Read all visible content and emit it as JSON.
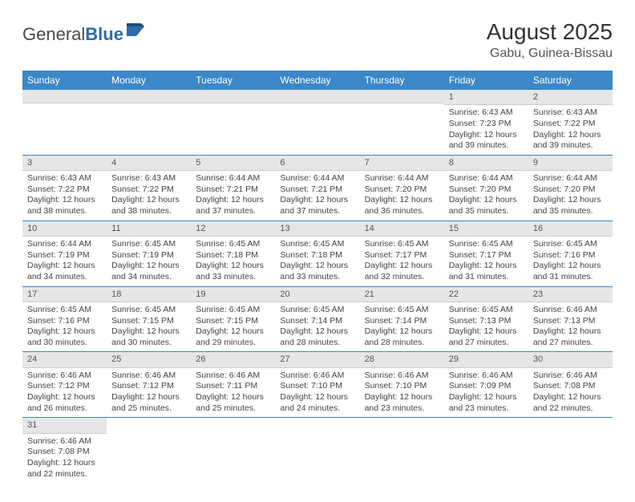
{
  "brand": {
    "name_part1": "General",
    "name_part2": "Blue",
    "logo_color": "#2e6ca8",
    "text_color": "#4a4a4a"
  },
  "title": "August 2025",
  "subtitle": "Gabu, Guinea-Bissau",
  "colors": {
    "header_bg": "#3b87c8",
    "header_fg": "#ffffff",
    "daynum_bg": "#e6e6e6",
    "week_divider": "#3b87c8",
    "body_text": "#444444"
  },
  "weekdays": [
    "Sunday",
    "Monday",
    "Tuesday",
    "Wednesday",
    "Thursday",
    "Friday",
    "Saturday"
  ],
  "weeks": [
    [
      null,
      null,
      null,
      null,
      null,
      {
        "d": "1",
        "sr": "Sunrise: 6:43 AM",
        "ss": "Sunset: 7:23 PM",
        "dl1": "Daylight: 12 hours",
        "dl2": "and 39 minutes."
      },
      {
        "d": "2",
        "sr": "Sunrise: 6:43 AM",
        "ss": "Sunset: 7:22 PM",
        "dl1": "Daylight: 12 hours",
        "dl2": "and 39 minutes."
      }
    ],
    [
      {
        "d": "3",
        "sr": "Sunrise: 6:43 AM",
        "ss": "Sunset: 7:22 PM",
        "dl1": "Daylight: 12 hours",
        "dl2": "and 38 minutes."
      },
      {
        "d": "4",
        "sr": "Sunrise: 6:43 AM",
        "ss": "Sunset: 7:22 PM",
        "dl1": "Daylight: 12 hours",
        "dl2": "and 38 minutes."
      },
      {
        "d": "5",
        "sr": "Sunrise: 6:44 AM",
        "ss": "Sunset: 7:21 PM",
        "dl1": "Daylight: 12 hours",
        "dl2": "and 37 minutes."
      },
      {
        "d": "6",
        "sr": "Sunrise: 6:44 AM",
        "ss": "Sunset: 7:21 PM",
        "dl1": "Daylight: 12 hours",
        "dl2": "and 37 minutes."
      },
      {
        "d": "7",
        "sr": "Sunrise: 6:44 AM",
        "ss": "Sunset: 7:20 PM",
        "dl1": "Daylight: 12 hours",
        "dl2": "and 36 minutes."
      },
      {
        "d": "8",
        "sr": "Sunrise: 6:44 AM",
        "ss": "Sunset: 7:20 PM",
        "dl1": "Daylight: 12 hours",
        "dl2": "and 35 minutes."
      },
      {
        "d": "9",
        "sr": "Sunrise: 6:44 AM",
        "ss": "Sunset: 7:20 PM",
        "dl1": "Daylight: 12 hours",
        "dl2": "and 35 minutes."
      }
    ],
    [
      {
        "d": "10",
        "sr": "Sunrise: 6:44 AM",
        "ss": "Sunset: 7:19 PM",
        "dl1": "Daylight: 12 hours",
        "dl2": "and 34 minutes."
      },
      {
        "d": "11",
        "sr": "Sunrise: 6:45 AM",
        "ss": "Sunset: 7:19 PM",
        "dl1": "Daylight: 12 hours",
        "dl2": "and 34 minutes."
      },
      {
        "d": "12",
        "sr": "Sunrise: 6:45 AM",
        "ss": "Sunset: 7:18 PM",
        "dl1": "Daylight: 12 hours",
        "dl2": "and 33 minutes."
      },
      {
        "d": "13",
        "sr": "Sunrise: 6:45 AM",
        "ss": "Sunset: 7:18 PM",
        "dl1": "Daylight: 12 hours",
        "dl2": "and 33 minutes."
      },
      {
        "d": "14",
        "sr": "Sunrise: 6:45 AM",
        "ss": "Sunset: 7:17 PM",
        "dl1": "Daylight: 12 hours",
        "dl2": "and 32 minutes."
      },
      {
        "d": "15",
        "sr": "Sunrise: 6:45 AM",
        "ss": "Sunset: 7:17 PM",
        "dl1": "Daylight: 12 hours",
        "dl2": "and 31 minutes."
      },
      {
        "d": "16",
        "sr": "Sunrise: 6:45 AM",
        "ss": "Sunset: 7:16 PM",
        "dl1": "Daylight: 12 hours",
        "dl2": "and 31 minutes."
      }
    ],
    [
      {
        "d": "17",
        "sr": "Sunrise: 6:45 AM",
        "ss": "Sunset: 7:16 PM",
        "dl1": "Daylight: 12 hours",
        "dl2": "and 30 minutes."
      },
      {
        "d": "18",
        "sr": "Sunrise: 6:45 AM",
        "ss": "Sunset: 7:15 PM",
        "dl1": "Daylight: 12 hours",
        "dl2": "and 30 minutes."
      },
      {
        "d": "19",
        "sr": "Sunrise: 6:45 AM",
        "ss": "Sunset: 7:15 PM",
        "dl1": "Daylight: 12 hours",
        "dl2": "and 29 minutes."
      },
      {
        "d": "20",
        "sr": "Sunrise: 6:45 AM",
        "ss": "Sunset: 7:14 PM",
        "dl1": "Daylight: 12 hours",
        "dl2": "and 28 minutes."
      },
      {
        "d": "21",
        "sr": "Sunrise: 6:45 AM",
        "ss": "Sunset: 7:14 PM",
        "dl1": "Daylight: 12 hours",
        "dl2": "and 28 minutes."
      },
      {
        "d": "22",
        "sr": "Sunrise: 6:45 AM",
        "ss": "Sunset: 7:13 PM",
        "dl1": "Daylight: 12 hours",
        "dl2": "and 27 minutes."
      },
      {
        "d": "23",
        "sr": "Sunrise: 6:46 AM",
        "ss": "Sunset: 7:13 PM",
        "dl1": "Daylight: 12 hours",
        "dl2": "and 27 minutes."
      }
    ],
    [
      {
        "d": "24",
        "sr": "Sunrise: 6:46 AM",
        "ss": "Sunset: 7:12 PM",
        "dl1": "Daylight: 12 hours",
        "dl2": "and 26 minutes."
      },
      {
        "d": "25",
        "sr": "Sunrise: 6:46 AM",
        "ss": "Sunset: 7:12 PM",
        "dl1": "Daylight: 12 hours",
        "dl2": "and 25 minutes."
      },
      {
        "d": "26",
        "sr": "Sunrise: 6:46 AM",
        "ss": "Sunset: 7:11 PM",
        "dl1": "Daylight: 12 hours",
        "dl2": "and 25 minutes."
      },
      {
        "d": "27",
        "sr": "Sunrise: 6:46 AM",
        "ss": "Sunset: 7:10 PM",
        "dl1": "Daylight: 12 hours",
        "dl2": "and 24 minutes."
      },
      {
        "d": "28",
        "sr": "Sunrise: 6:46 AM",
        "ss": "Sunset: 7:10 PM",
        "dl1": "Daylight: 12 hours",
        "dl2": "and 23 minutes."
      },
      {
        "d": "29",
        "sr": "Sunrise: 6:46 AM",
        "ss": "Sunset: 7:09 PM",
        "dl1": "Daylight: 12 hours",
        "dl2": "and 23 minutes."
      },
      {
        "d": "30",
        "sr": "Sunrise: 6:46 AM",
        "ss": "Sunset: 7:08 PM",
        "dl1": "Daylight: 12 hours",
        "dl2": "and 22 minutes."
      }
    ],
    [
      {
        "d": "31",
        "sr": "Sunrise: 6:46 AM",
        "ss": "Sunset: 7:08 PM",
        "dl1": "Daylight: 12 hours",
        "dl2": "and 22 minutes."
      },
      null,
      null,
      null,
      null,
      null,
      null
    ]
  ]
}
